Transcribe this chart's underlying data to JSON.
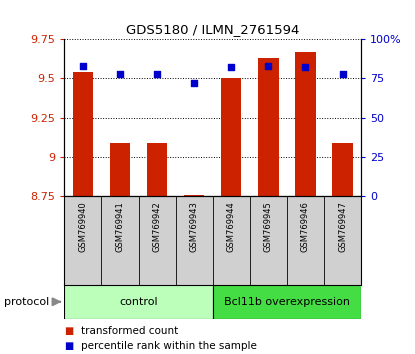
{
  "title": "GDS5180 / ILMN_2761594",
  "samples": [
    "GSM769940",
    "GSM769941",
    "GSM769942",
    "GSM769943",
    "GSM769944",
    "GSM769945",
    "GSM769946",
    "GSM769947"
  ],
  "transformed_counts": [
    9.54,
    9.09,
    9.09,
    8.76,
    9.5,
    9.63,
    9.67,
    9.09
  ],
  "percentile_ranks": [
    83,
    78,
    78,
    72,
    82,
    83,
    82,
    78
  ],
  "ylim_left": [
    8.75,
    9.75
  ],
  "ylim_right": [
    0,
    100
  ],
  "yticks_left": [
    8.75,
    9.0,
    9.25,
    9.5,
    9.75
  ],
  "yticks_right": [
    0,
    25,
    50,
    75,
    100
  ],
  "ytick_labels_left": [
    "8.75",
    "9",
    "9.25",
    "9.5",
    "9.75"
  ],
  "ytick_labels_right": [
    "0",
    "25",
    "50",
    "75",
    "100%"
  ],
  "bar_color": "#cc2200",
  "dot_color": "#0000cc",
  "bg_color": "#d0d0d0",
  "control_color": "#bbffbb",
  "overexp_color": "#44dd44",
  "control_label": "control",
  "overexp_label": "Bcl11b overexpression",
  "protocol_label": "protocol",
  "legend_bar": "transformed count",
  "legend_dot": "percentile rank within the sample",
  "control_samples": [
    0,
    1,
    2,
    3
  ],
  "overexp_samples": [
    4,
    5,
    6,
    7
  ]
}
